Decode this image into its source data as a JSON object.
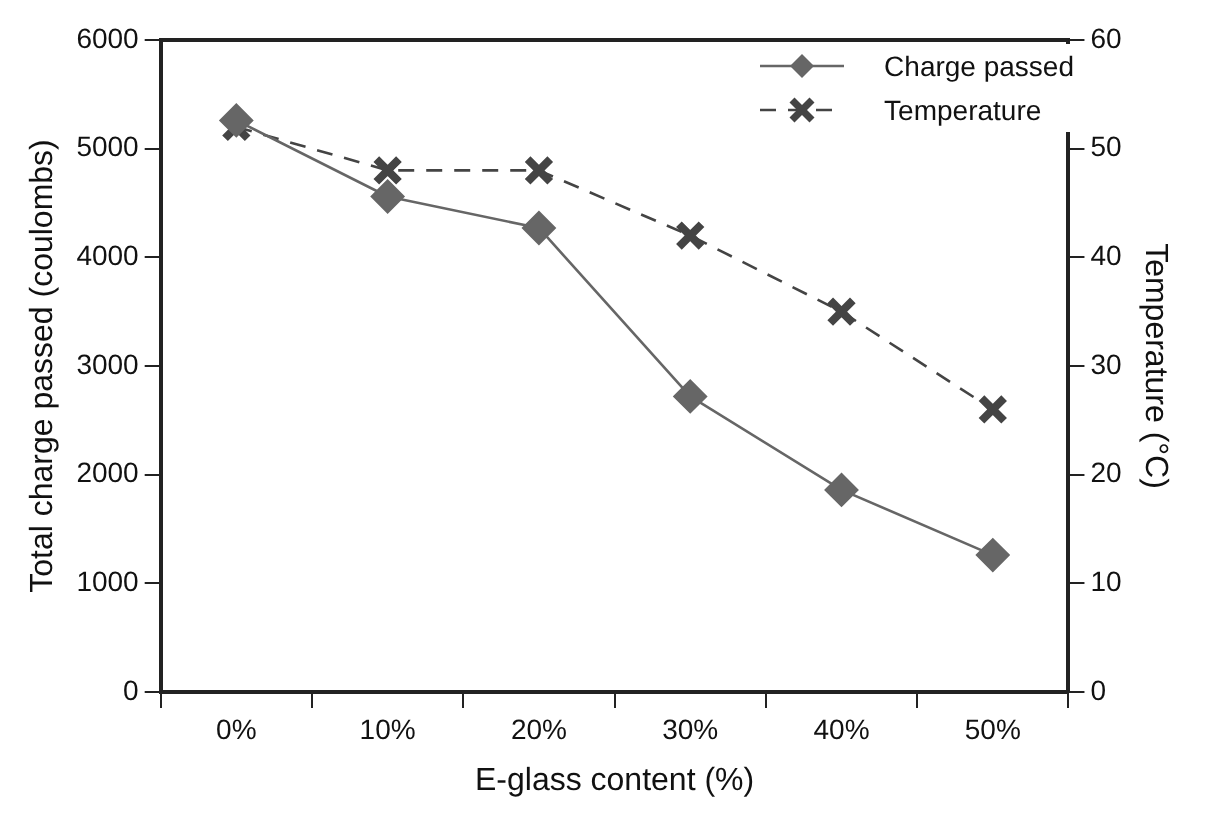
{
  "chart_data": {
    "type": "line",
    "xlabel": "E-glass content (%)",
    "ylabel": "Total charge passed (coulombs)",
    "y2label": "Temperature (°C)",
    "categories": [
      "0%",
      "10%",
      "20%",
      "30%",
      "40%",
      "50%"
    ],
    "series": [
      {
        "name": "Charge passed",
        "color": "#666666",
        "marker": "diamond",
        "line_style": "solid",
        "values": [
          5260,
          4560,
          4270,
          2720,
          1860,
          1260
        ]
      },
      {
        "name": "Temperature",
        "color": "#444444",
        "marker": "cross",
        "line_style": "dashed",
        "axis": "y2",
        "values": [
          52,
          48,
          48,
          42,
          35,
          26
        ]
      }
    ],
    "ylim": [
      0,
      6000
    ],
    "yticks": [
      0,
      1000,
      2000,
      3000,
      4000,
      5000,
      6000
    ],
    "y2lim": [
      0,
      60
    ],
    "y2ticks": [
      0,
      10,
      20,
      30,
      40,
      50,
      60
    ],
    "grid": false,
    "legend": "top right"
  }
}
